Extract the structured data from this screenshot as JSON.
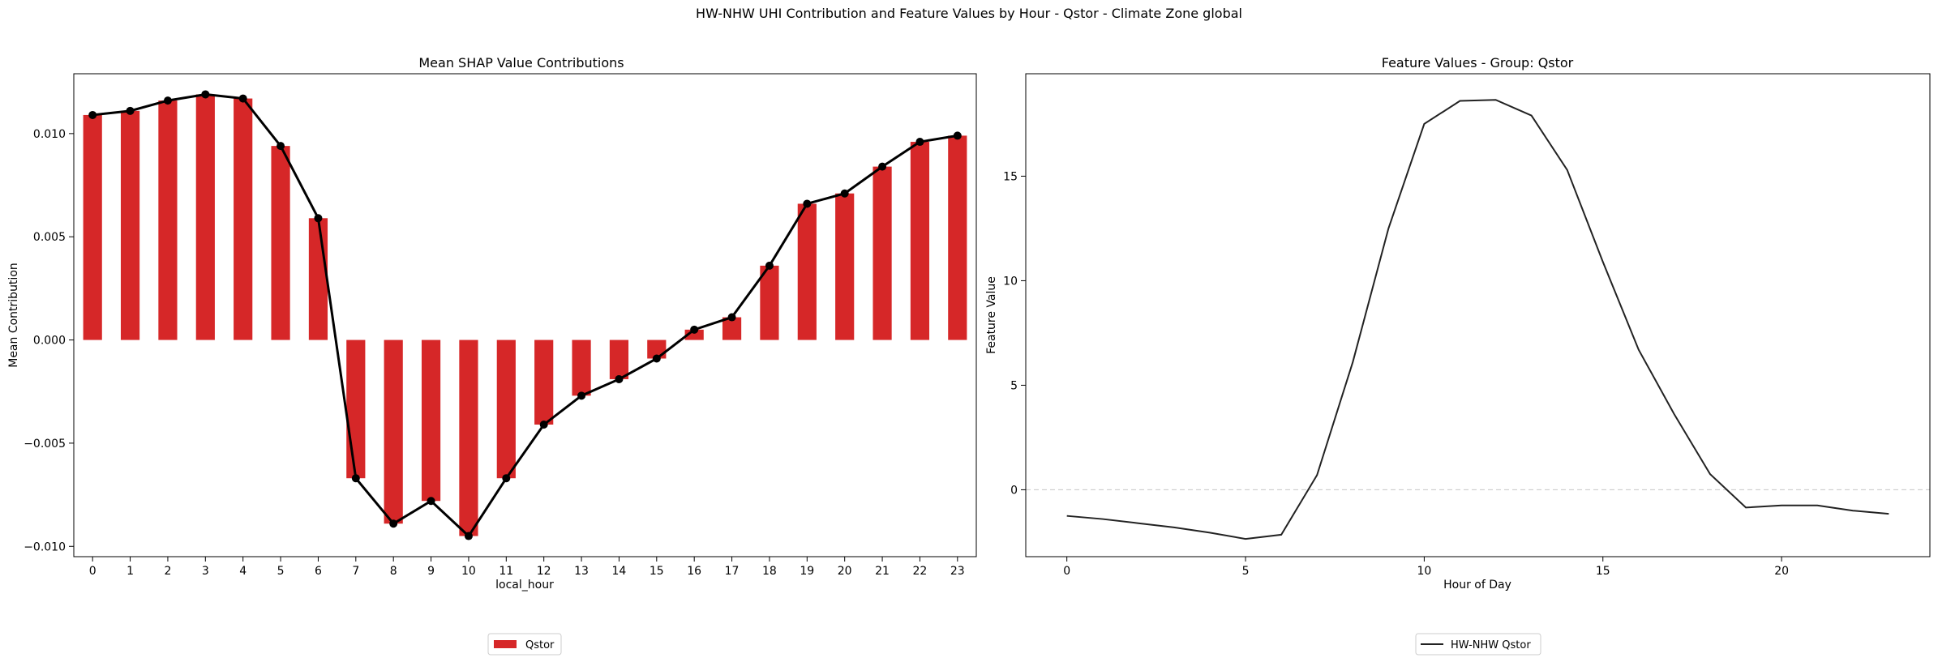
{
  "figure": {
    "suptitle": "HW-NHW UHI Contribution and Feature Values by Hour - Qstor - Climate Zone global"
  },
  "colors": {
    "bar": "#d62728",
    "line": "#000000",
    "feature_line": "#222222",
    "zero_line": "#c8c8c8"
  },
  "chart_data": [
    {
      "type": "bar",
      "title": "Mean SHAP Value Contributions",
      "xlabel": "local_hour",
      "ylabel": "Mean Contribution",
      "categories": [
        "0",
        "1",
        "2",
        "3",
        "4",
        "5",
        "6",
        "7",
        "8",
        "9",
        "10",
        "11",
        "12",
        "13",
        "14",
        "15",
        "16",
        "17",
        "18",
        "19",
        "20",
        "21",
        "22",
        "23"
      ],
      "series": [
        {
          "name": "Qstor",
          "kind": "bar",
          "values": [
            0.0109,
            0.0111,
            0.0116,
            0.0119,
            0.0117,
            0.0094,
            0.0059,
            -0.0067,
            -0.0089,
            -0.0078,
            -0.0095,
            -0.0067,
            -0.0041,
            -0.0027,
            -0.0019,
            -0.0009,
            0.0005,
            0.0011,
            0.0036,
            0.0066,
            0.0071,
            0.0084,
            0.0096,
            0.0099
          ]
        },
        {
          "name": "Qstor mean",
          "kind": "line-markers",
          "values": [
            0.0109,
            0.0111,
            0.0116,
            0.0119,
            0.0117,
            0.0094,
            0.0059,
            -0.0067,
            -0.0089,
            -0.0078,
            -0.0095,
            -0.0067,
            -0.0041,
            -0.0027,
            -0.0019,
            -0.0009,
            0.0005,
            0.0011,
            0.0036,
            0.0066,
            0.0071,
            0.0084,
            0.0096,
            0.0099
          ]
        }
      ],
      "ylim": [
        -0.0105,
        0.0129
      ],
      "yticks": [
        -0.01,
        -0.005,
        0.0,
        0.005,
        0.01
      ],
      "ytick_labels": [
        "−0.010",
        "−0.005",
        "0.000",
        "0.005",
        "0.010"
      ],
      "legend": {
        "entries": [
          "Qstor"
        ],
        "placement": "bottom-center"
      }
    },
    {
      "type": "line",
      "title": "Feature Values - Group: Qstor",
      "xlabel": "Hour of Day",
      "ylabel": "Feature Value",
      "x": [
        0,
        1,
        2,
        3,
        4,
        5,
        6,
        7,
        8,
        9,
        10,
        11,
        12,
        13,
        14,
        15,
        16,
        17,
        18,
        19,
        20,
        21,
        22,
        23
      ],
      "series": [
        {
          "name": "HW-NHW Qstor",
          "values": [
            -1.25,
            -1.4,
            -1.6,
            -1.8,
            -2.05,
            -2.35,
            -2.15,
            0.7,
            6.1,
            12.5,
            17.5,
            18.6,
            18.65,
            17.9,
            15.3,
            10.9,
            6.7,
            3.6,
            0.75,
            -0.85,
            -0.75,
            -0.75,
            -1.0,
            -1.15
          ]
        }
      ],
      "xlim": [
        -1.15,
        24.15
      ],
      "ylim": [
        -3.2,
        19.9
      ],
      "xticks": [
        0,
        5,
        10,
        15,
        20
      ],
      "xtick_labels": [
        "0",
        "5",
        "10",
        "15",
        "20"
      ],
      "yticks": [
        0,
        5,
        10,
        15
      ],
      "ytick_labels": [
        "0",
        "5",
        "10",
        "15"
      ],
      "hline": 0,
      "legend": {
        "entries": [
          "HW-NHW Qstor"
        ],
        "placement": "bottom-center"
      }
    }
  ]
}
